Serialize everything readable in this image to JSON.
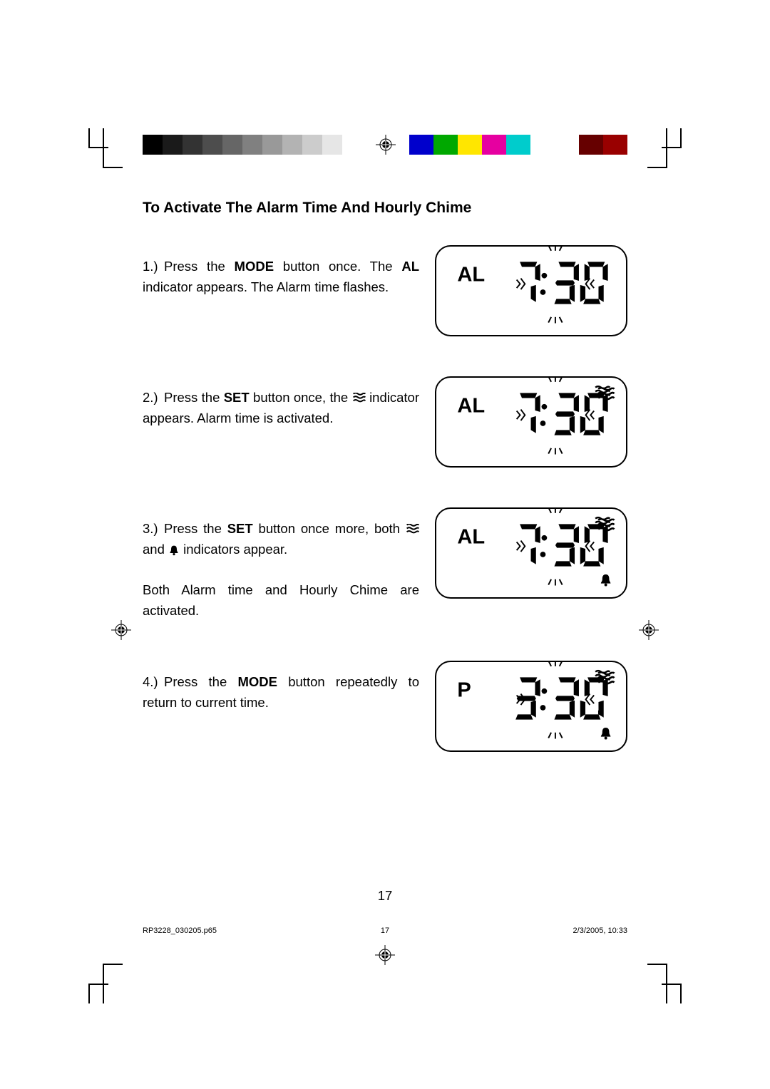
{
  "title": "To Activate The Alarm Time And Hourly Chime",
  "steps": [
    {
      "num": "1.)",
      "pre": "Press the ",
      "bold1": "MODE",
      "mid": " button once. The ",
      "bold2": "AL",
      "post": " indicator appears. The Alarm time flashes.",
      "icons": [],
      "lcd": {
        "label": "AL",
        "time": "7:30",
        "flashTicks": true,
        "waves": false,
        "bell": false
      }
    },
    {
      "num": "2.)",
      "pre": "Press the ",
      "bold1": "SET",
      "mid": " button once, the ",
      "bold2": "",
      "post": " indicator appears. Alarm time is activated.",
      "icons": [
        "waves"
      ],
      "lcd": {
        "label": "AL",
        "time": "7:30",
        "flashTicks": true,
        "waves": true,
        "bell": false
      }
    },
    {
      "num": "3.)",
      "pre": "Press the ",
      "bold1": "SET",
      "mid": " button once more, both ",
      "bold2": "",
      "post": " indicators appear.",
      "extra": "Both Alarm time and Hourly Chime are activated.",
      "icons": [
        "waves",
        "bell"
      ],
      "lcd": {
        "label": "AL",
        "time": "7:30",
        "flashTicks": true,
        "waves": true,
        "bell": true
      }
    },
    {
      "num": "4.)",
      "pre": "Press the ",
      "bold1": "MODE",
      "mid": " button repeatedly to return to current time.",
      "bold2": "",
      "post": "",
      "icons": [],
      "lcd": {
        "label": "P",
        "time": "3:30",
        "flashTicks": true,
        "waves": true,
        "bell": true,
        "hasSeconds": true
      }
    }
  ],
  "pageNumber": "17",
  "footer": {
    "file": "RP3228_030205.p65",
    "page": "17",
    "datetime": "2/3/2005, 10:33"
  },
  "colors": {
    "graySteps": [
      "#000000",
      "#1a1a1a",
      "#333333",
      "#4d4d4d",
      "#666666",
      "#808080",
      "#999999",
      "#b3b3b3",
      "#cccccc",
      "#e6e6e6",
      "#ffffff"
    ],
    "colorBars": [
      "#0000cc",
      "#00a800",
      "#ffe600",
      "#e600a0",
      "#00cccc",
      "#ffffff",
      "#ffffff",
      "#660000",
      "#990000"
    ],
    "black": "#000000"
  }
}
